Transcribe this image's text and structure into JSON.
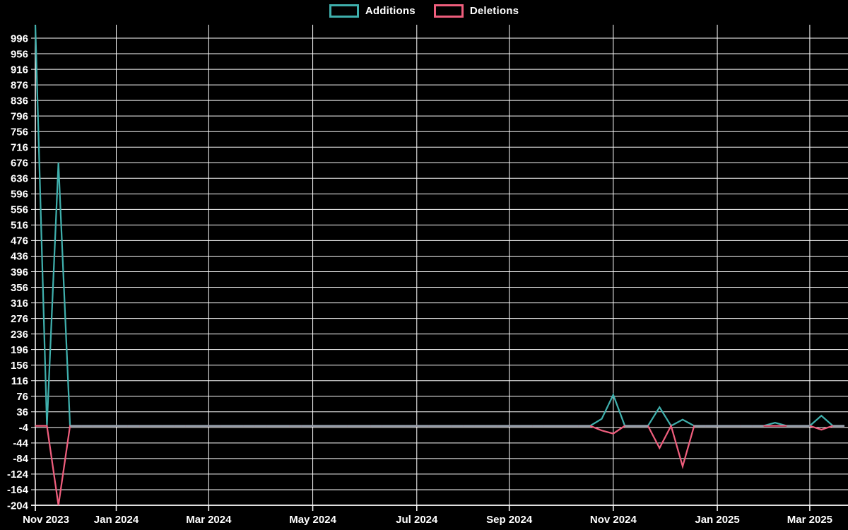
{
  "chart_data": {
    "type": "line",
    "title": "",
    "description": "Weekly additions and deletions line chart on black background",
    "legend_position": "top",
    "background": "#000000",
    "grid_color": "#ffffff",
    "overlap_baseline_color": "#99a4b0",
    "x_unit": "week",
    "x_ticks": [
      {
        "index": 0,
        "label": "Nov 2023"
      },
      {
        "index": 7,
        "label": "Jan 2024"
      },
      {
        "index": 15,
        "label": "Mar 2024"
      },
      {
        "index": 24,
        "label": "May 2024"
      },
      {
        "index": 33,
        "label": "Jul 2024"
      },
      {
        "index": 41,
        "label": "Sep 2024"
      },
      {
        "index": 50,
        "label": "Nov 2024"
      },
      {
        "index": 59,
        "label": "Jan 2025"
      },
      {
        "index": 67,
        "label": "Mar 2025"
      }
    ],
    "y_axis": {
      "tick_min": -204,
      "tick_max": 996,
      "tick_step": 40,
      "domain_min": -204,
      "domain_max": 1030
    },
    "series": [
      {
        "name": "Additions",
        "color": "#3fafac",
        "values": [
          1030,
          0,
          676,
          0,
          0,
          0,
          0,
          0,
          0,
          0,
          0,
          0,
          0,
          0,
          0,
          0,
          0,
          0,
          0,
          0,
          0,
          0,
          0,
          0,
          0,
          0,
          0,
          0,
          0,
          0,
          0,
          0,
          0,
          0,
          0,
          0,
          0,
          0,
          0,
          0,
          0,
          0,
          0,
          0,
          0,
          0,
          0,
          0,
          0,
          18,
          80,
          0,
          0,
          0,
          48,
          0,
          16,
          0,
          0,
          0,
          0,
          0,
          0,
          0,
          8,
          0,
          0,
          0,
          26,
          0,
          0
        ]
      },
      {
        "name": "Deletions",
        "color": "#ef5e7d",
        "values": [
          0,
          0,
          -204,
          0,
          0,
          0,
          0,
          0,
          0,
          0,
          0,
          0,
          0,
          0,
          0,
          0,
          0,
          0,
          0,
          0,
          0,
          0,
          0,
          0,
          0,
          0,
          0,
          0,
          0,
          0,
          0,
          0,
          0,
          0,
          0,
          0,
          0,
          0,
          0,
          0,
          0,
          0,
          0,
          0,
          0,
          0,
          0,
          0,
          0,
          -12,
          -20,
          0,
          0,
          0,
          -57,
          0,
          -104,
          0,
          0,
          0,
          0,
          0,
          0,
          0,
          0,
          0,
          0,
          0,
          -10,
          0,
          0
        ]
      }
    ]
  }
}
